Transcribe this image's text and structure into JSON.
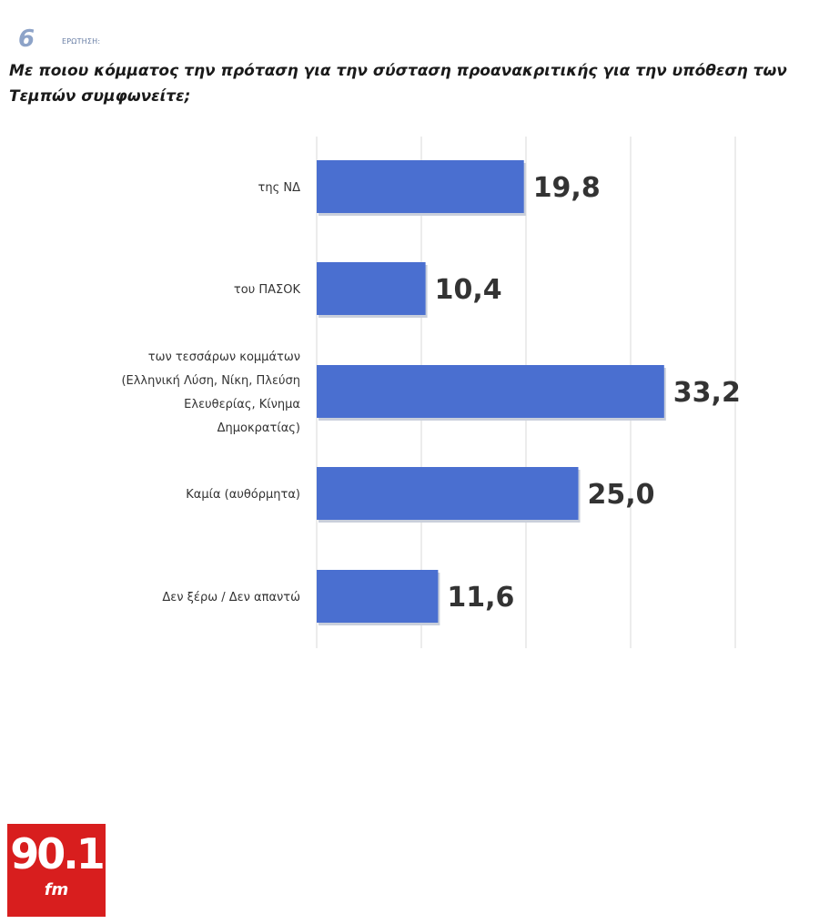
{
  "header": {
    "question_number": "6",
    "question_tag": "ΕΡΩΤΗΣΗ:",
    "question_text": "Με ποιου κόμματος την πρόταση για την σύσταση προανακριτικής για την υπόθεση των Τεμπών συμφωνείτε;"
  },
  "chart_data": {
    "type": "bar",
    "orientation": "horizontal",
    "title": "",
    "xlabel": "",
    "ylabel": "",
    "categories": [
      "της ΝΔ",
      "του ΠΑΣΟΚ",
      "των τεσσάρων κομμάτων (Ελληνική Λύση, Νίκη, Πλεύση Ελευθερίας, Κίνημα Δημοκρατίας)",
      "Καμία (αυθόρμητα)",
      "Δεν ξέρω / Δεν απαντώ"
    ],
    "category_lines": [
      [
        "της ΝΔ"
      ],
      [
        "του ΠΑΣΟΚ"
      ],
      [
        "των τεσσάρων κομμάτων",
        "(Ελληνική Λύση, Νίκη, Πλεύση",
        "Ελευθερίας, Κίνημα",
        "Δημοκρατίας)"
      ],
      [
        "Καμία (αυθόρμητα)"
      ],
      [
        "Δεν ξέρω / Δεν απαντώ"
      ]
    ],
    "values": [
      19.8,
      10.4,
      33.2,
      25.0,
      11.6
    ],
    "value_labels": [
      "19,8",
      "10,4",
      "33,2",
      "25,0",
      "11,6"
    ],
    "xlim": [
      0,
      40
    ],
    "gridlines": [
      0,
      10,
      20,
      30,
      40
    ],
    "grid": true,
    "legend": "none",
    "bar_color": "#4a6fd0"
  },
  "logo": {
    "number": "90.1",
    "suffix": "fm",
    "color": "#d81e1e"
  }
}
